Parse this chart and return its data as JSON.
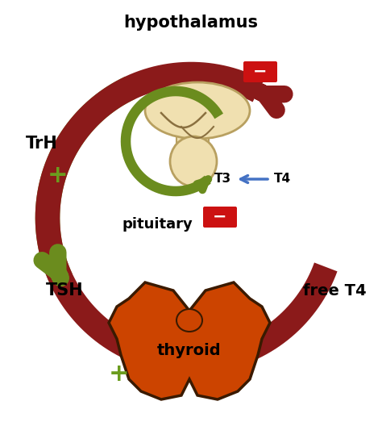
{
  "bg_color": "#ffffff",
  "green_color": "#6b8c1e",
  "darkred_color": "#8b1a1a",
  "hypo_fill": "#f0e0b0",
  "hypo_edge": "#b8a060",
  "thyroid_fill": "#cc4400",
  "thyroid_edge": "#3a1a00",
  "red_minus_color": "#cc1111",
  "blue_color": "#4472c4",
  "plus_color": "#6b9c1e",
  "black": "#000000",
  "white": "#ffffff",
  "label_hypothalamus": "hypothalamus",
  "label_pituitary": "pituitary",
  "label_thyroid": "thyroid",
  "label_TrH": "TrH",
  "label_TSH": "TSH",
  "label_freeT4": "free T4",
  "label_T3": "T3",
  "label_T4": "T4"
}
